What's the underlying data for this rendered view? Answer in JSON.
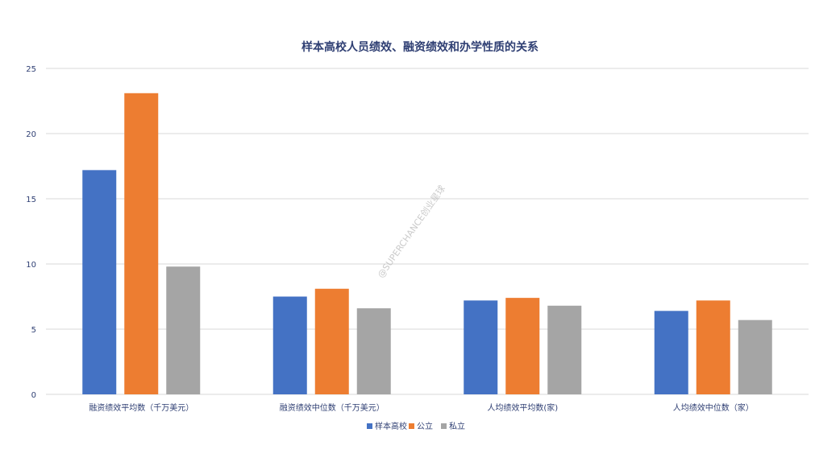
{
  "chart_data": {
    "type": "bar",
    "title": "样本高校人员绩效、融资绩效和办学性质的关系",
    "categories": [
      "融资绩效平均数（千万美元）",
      "融资绩效中位数（千万美元）",
      "人均绩效平均数(家)",
      "人均绩效中位数（家）"
    ],
    "series": [
      {
        "name": "样本高校",
        "color": "#4472c4",
        "values": [
          17.2,
          7.5,
          7.2,
          6.4
        ]
      },
      {
        "name": "公立",
        "color": "#ed7d31",
        "values": [
          23.1,
          8.1,
          7.4,
          7.2
        ]
      },
      {
        "name": "私立",
        "color": "#a5a5a5",
        "values": [
          9.8,
          6.6,
          6.8,
          5.7
        ]
      }
    ],
    "ylim": [
      0,
      25
    ],
    "yticks": [
      "0",
      "5",
      "10",
      "15",
      "20",
      "25"
    ],
    "grid": true,
    "legend_position": "bottom",
    "xlabel": "",
    "ylabel": ""
  },
  "watermark": "@SUPERCHANCE创业星球"
}
